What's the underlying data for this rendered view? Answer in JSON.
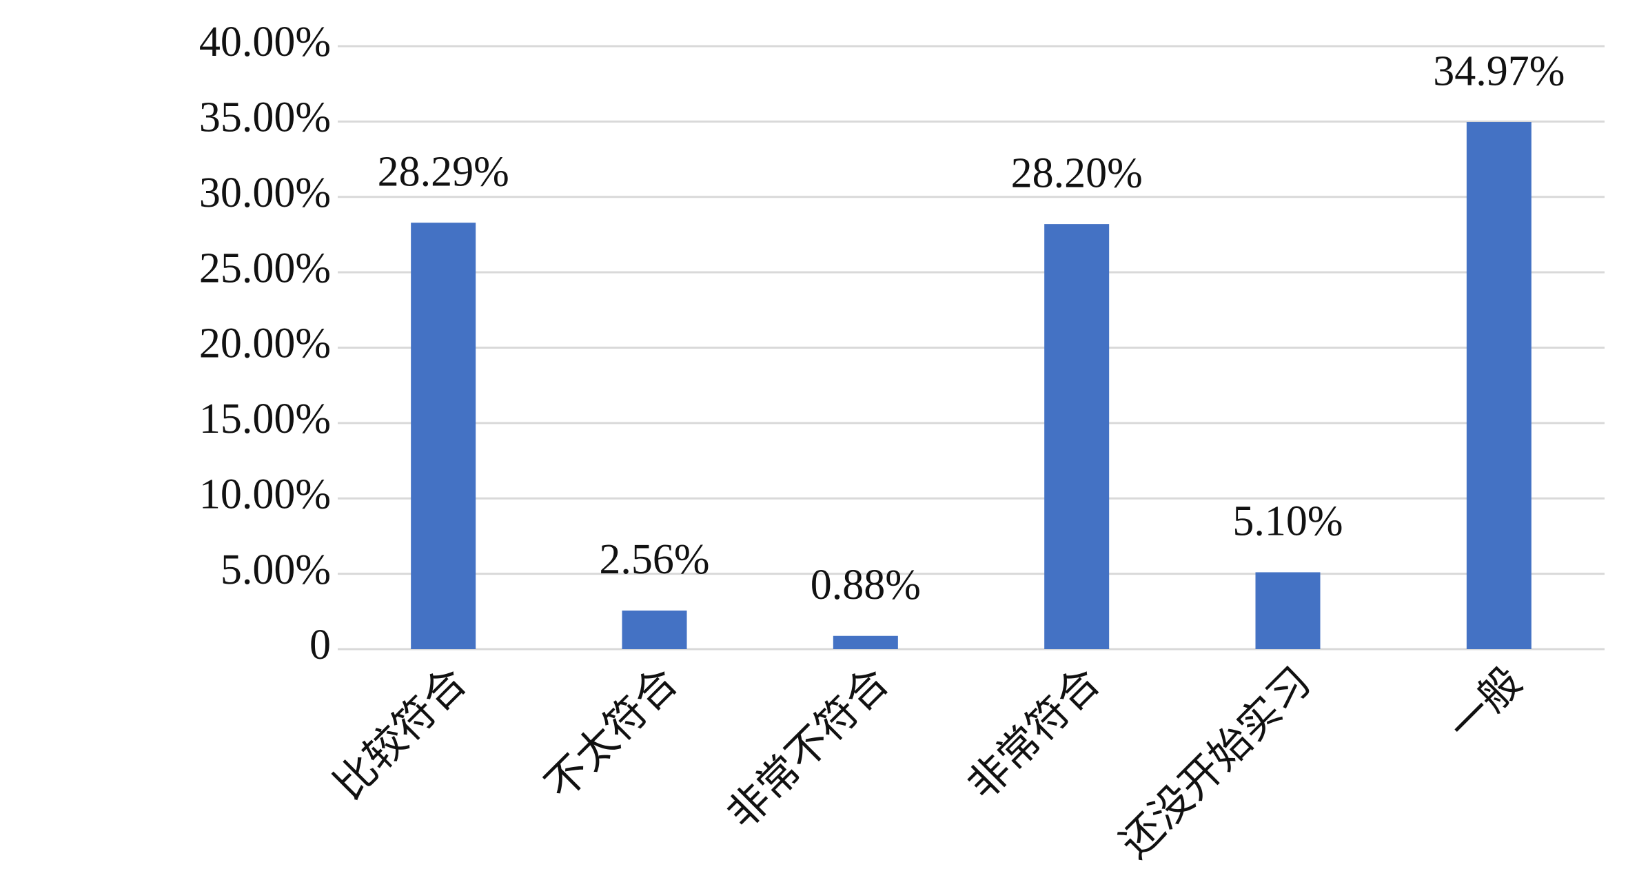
{
  "chart_data": {
    "type": "bar",
    "categories": [
      "比较符合",
      "不太符合",
      "非常不符合",
      "非常符合",
      "还没开始实习",
      "一般"
    ],
    "values": [
      28.29,
      2.56,
      0.88,
      28.2,
      5.1,
      34.97
    ],
    "value_labels": [
      "28.29%",
      "2.56%",
      "0.88%",
      "28.20%",
      "5.10%",
      "34.97%"
    ],
    "color": "#4472c4",
    "ylim": [
      0,
      40
    ],
    "yticks": [
      0,
      {
        "value": 5,
        "label": "5.00%"
      },
      {
        "value": 10,
        "label": "10.00%"
      },
      {
        "value": 15,
        "label": "15.00%"
      },
      {
        "value": 20,
        "label": "20.00%"
      },
      {
        "value": 25,
        "label": "25.00%"
      },
      {
        "value": 30,
        "label": "30.00%"
      },
      {
        "value": 35,
        "label": "35.00%"
      },
      {
        "value": 40,
        "label": "40.00%"
      }
    ],
    "grid": true
  }
}
